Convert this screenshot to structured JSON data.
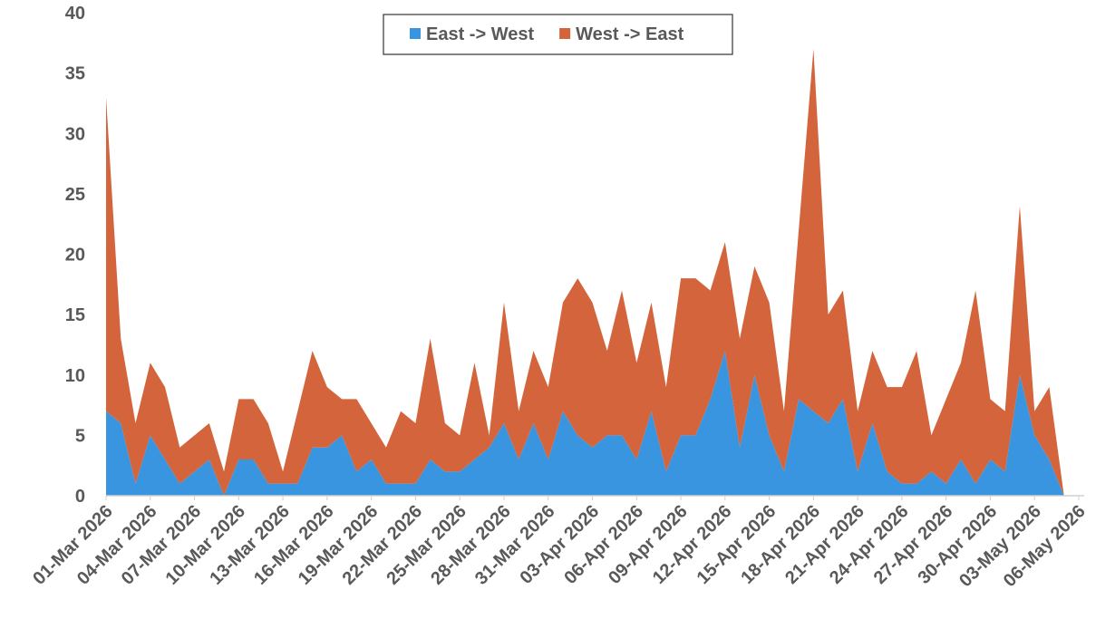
{
  "chart_data": {
    "type": "stacked_area",
    "categories": [
      "01-Mar 2026",
      null,
      null,
      "04-Mar 2026",
      null,
      null,
      "07-Mar 2026",
      null,
      null,
      "10-Mar 2026",
      null,
      null,
      "13-Mar 2026",
      null,
      null,
      "16-Mar 2026",
      null,
      null,
      "19-Mar 2026",
      null,
      null,
      "22-Mar 2026",
      null,
      null,
      "25-Mar 2026",
      null,
      null,
      "28-Mar 2026",
      null,
      null,
      "31-Mar 2026",
      null,
      null,
      "03-Apr 2026",
      null,
      null,
      "06-Apr 2026",
      null,
      null,
      "09-Apr 2026",
      null,
      null,
      "12-Apr 2026",
      null,
      null,
      "15-Apr 2026",
      null,
      null,
      "18-Apr 2026",
      null,
      null,
      "21-Apr 2026",
      null,
      null,
      "24-Apr 2026",
      null,
      null,
      "27-Apr 2026",
      null,
      null,
      "30-Apr 2026",
      null,
      null,
      "03-May 2026",
      null,
      null,
      "06-May 2026"
    ],
    "series": [
      {
        "name": "East -> West",
        "color": "#3a95e0",
        "values": [
          7,
          6,
          1,
          5,
          3,
          1,
          2,
          3,
          0,
          3,
          3,
          1,
          1,
          1,
          4,
          4,
          5,
          2,
          3,
          1,
          1,
          1,
          3,
          2,
          2,
          3,
          4,
          6,
          3,
          6,
          3,
          7,
          5,
          4,
          5,
          5,
          3,
          7,
          2,
          5,
          5,
          8,
          12,
          4,
          10,
          5,
          2,
          8,
          7,
          6,
          8,
          2,
          6,
          2,
          1,
          1,
          2,
          1,
          3,
          1,
          3,
          2,
          10,
          5,
          3,
          0,
          0
        ]
      },
      {
        "name": "West -> East",
        "color": "#d4643c",
        "values": [
          26,
          7,
          5,
          6,
          6,
          3,
          3,
          3,
          2,
          5,
          5,
          5,
          1,
          6,
          8,
          5,
          3,
          6,
          3,
          3,
          6,
          5,
          10,
          4,
          3,
          8,
          1,
          10,
          4,
          6,
          6,
          9,
          13,
          12,
          7,
          12,
          8,
          9,
          7,
          13,
          13,
          9,
          9,
          9,
          9,
          11,
          5,
          14,
          30,
          9,
          9,
          5,
          6,
          7,
          8,
          11,
          3,
          7,
          8,
          16,
          5,
          5,
          14,
          2,
          6,
          0,
          0
        ]
      }
    ],
    "ylim": [
      0,
      40
    ],
    "yticks": [
      0,
      5,
      10,
      15,
      20,
      25,
      30,
      35,
      40
    ],
    "legend": "top"
  }
}
